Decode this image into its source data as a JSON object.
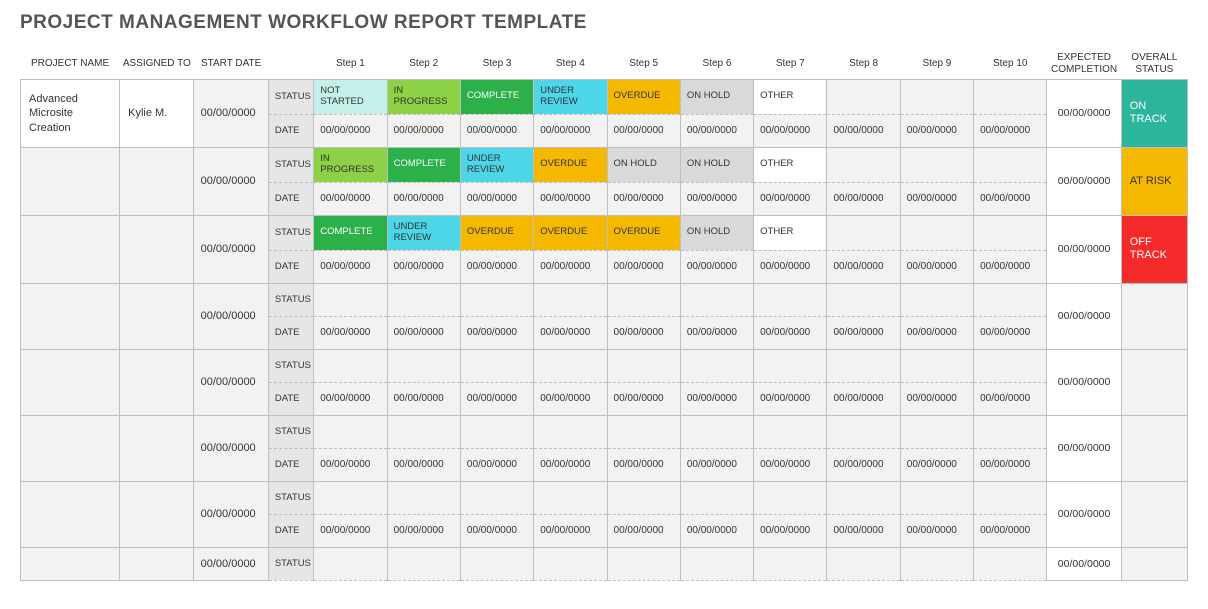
{
  "title": "PROJECT MANAGEMENT WORKFLOW REPORT TEMPLATE",
  "headers": {
    "project_name": "PROJECT NAME",
    "assigned_to": "ASSIGNED TO",
    "start_date": "START DATE",
    "steps": [
      "Step 1",
      "Step 2",
      "Step 3",
      "Step 4",
      "Step 5",
      "Step 6",
      "Step 7",
      "Step 8",
      "Step 9",
      "Step 10"
    ],
    "expected": "EXPECTED COMPLETION",
    "overall": "OVERALL STATUS"
  },
  "row_labels": {
    "status": "STATUS",
    "date": "DATE"
  },
  "date_placeholder": "00/00/0000",
  "status_colors": {
    "NOT STARTED": "#c5efe9",
    "IN PROGRESS": "#8cd146",
    "COMPLETE": "#2bb04a",
    "UNDER REVIEW": "#4dd5e8",
    "OVERDUE": "#f5b800",
    "ON HOLD": "#d9d9d9",
    "OTHER": "#ffffff",
    "": "#f2f2f2"
  },
  "status_text_colors": {
    "COMPLETE": "#ffffff"
  },
  "overall_colors": {
    "ON TRACK": "#2bb59a",
    "AT RISK": "#f5b800",
    "OFF TRACK": "#f52b2b",
    "": "#f2f2f2"
  },
  "overall_text_colors": {
    "ON TRACK": "#ffffff",
    "OFF TRACK": "#ffffff",
    "AT RISK": "#333333"
  },
  "rows": [
    {
      "project": "Advanced Microsite Creation",
      "assigned": "Kylie M.",
      "start": "00/00/0000",
      "statuses": [
        "NOT STARTED",
        "IN PROGRESS",
        "COMPLETE",
        "UNDER REVIEW",
        "OVERDUE",
        "ON HOLD",
        "OTHER",
        "",
        "",
        ""
      ],
      "dates": [
        "00/00/0000",
        "00/00/0000",
        "00/00/0000",
        "00/00/0000",
        "00/00/0000",
        "00/00/0000",
        "00/00/0000",
        "00/00/0000",
        "00/00/0000",
        "00/00/0000"
      ],
      "expected": "00/00/0000",
      "overall": "ON TRACK",
      "proj_bg": "white"
    },
    {
      "project": "",
      "assigned": "",
      "start": "00/00/0000",
      "statuses": [
        "IN PROGRESS",
        "COMPLETE",
        "UNDER REVIEW",
        "OVERDUE",
        "ON HOLD",
        "ON HOLD",
        "OTHER",
        "",
        "",
        ""
      ],
      "dates": [
        "00/00/0000",
        "00/00/0000",
        "00/00/0000",
        "00/00/0000",
        "00/00/0000",
        "00/00/0000",
        "00/00/0000",
        "00/00/0000",
        "00/00/0000",
        "00/00/0000"
      ],
      "expected": "00/00/0000",
      "overall": "AT RISK"
    },
    {
      "project": "",
      "assigned": "",
      "start": "00/00/0000",
      "statuses": [
        "COMPLETE",
        "UNDER REVIEW",
        "OVERDUE",
        "OVERDUE",
        "OVERDUE",
        "ON HOLD",
        "OTHER",
        "",
        "",
        ""
      ],
      "dates": [
        "00/00/0000",
        "00/00/0000",
        "00/00/0000",
        "00/00/0000",
        "00/00/0000",
        "00/00/0000",
        "00/00/0000",
        "00/00/0000",
        "00/00/0000",
        "00/00/0000"
      ],
      "expected": "00/00/0000",
      "overall": "OFF TRACK"
    },
    {
      "project": "",
      "assigned": "",
      "start": "00/00/0000",
      "statuses": [
        "",
        "",
        "",
        "",
        "",
        "",
        "",
        "",
        "",
        ""
      ],
      "dates": [
        "00/00/0000",
        "00/00/0000",
        "00/00/0000",
        "00/00/0000",
        "00/00/0000",
        "00/00/0000",
        "00/00/0000",
        "00/00/0000",
        "00/00/0000",
        "00/00/0000"
      ],
      "expected": "00/00/0000",
      "overall": ""
    },
    {
      "project": "",
      "assigned": "",
      "start": "00/00/0000",
      "statuses": [
        "",
        "",
        "",
        "",
        "",
        "",
        "",
        "",
        "",
        ""
      ],
      "dates": [
        "00/00/0000",
        "00/00/0000",
        "00/00/0000",
        "00/00/0000",
        "00/00/0000",
        "00/00/0000",
        "00/00/0000",
        "00/00/0000",
        "00/00/0000",
        "00/00/0000"
      ],
      "expected": "00/00/0000",
      "overall": ""
    },
    {
      "project": "",
      "assigned": "",
      "start": "00/00/0000",
      "statuses": [
        "",
        "",
        "",
        "",
        "",
        "",
        "",
        "",
        "",
        ""
      ],
      "dates": [
        "00/00/0000",
        "00/00/0000",
        "00/00/0000",
        "00/00/0000",
        "00/00/0000",
        "00/00/0000",
        "00/00/0000",
        "00/00/0000",
        "00/00/0000",
        "00/00/0000"
      ],
      "expected": "00/00/0000",
      "overall": ""
    },
    {
      "project": "",
      "assigned": "",
      "start": "00/00/0000",
      "statuses": [
        "",
        "",
        "",
        "",
        "",
        "",
        "",
        "",
        "",
        ""
      ],
      "dates": [
        "00/00/0000",
        "00/00/0000",
        "00/00/0000",
        "00/00/0000",
        "00/00/0000",
        "00/00/0000",
        "00/00/0000",
        "00/00/0000",
        "00/00/0000",
        "00/00/0000"
      ],
      "expected": "00/00/0000",
      "overall": ""
    },
    {
      "project": "",
      "assigned": "",
      "start": "00/00/0000",
      "statuses": [
        "",
        "",
        "",
        "",
        "",
        "",
        "",
        "",
        "",
        ""
      ],
      "dates": [
        "",
        "",
        "",
        "",
        "",
        "",
        "",
        "",
        "",
        ""
      ],
      "expected": "00/00/0000",
      "overall": "",
      "partial": true
    }
  ]
}
